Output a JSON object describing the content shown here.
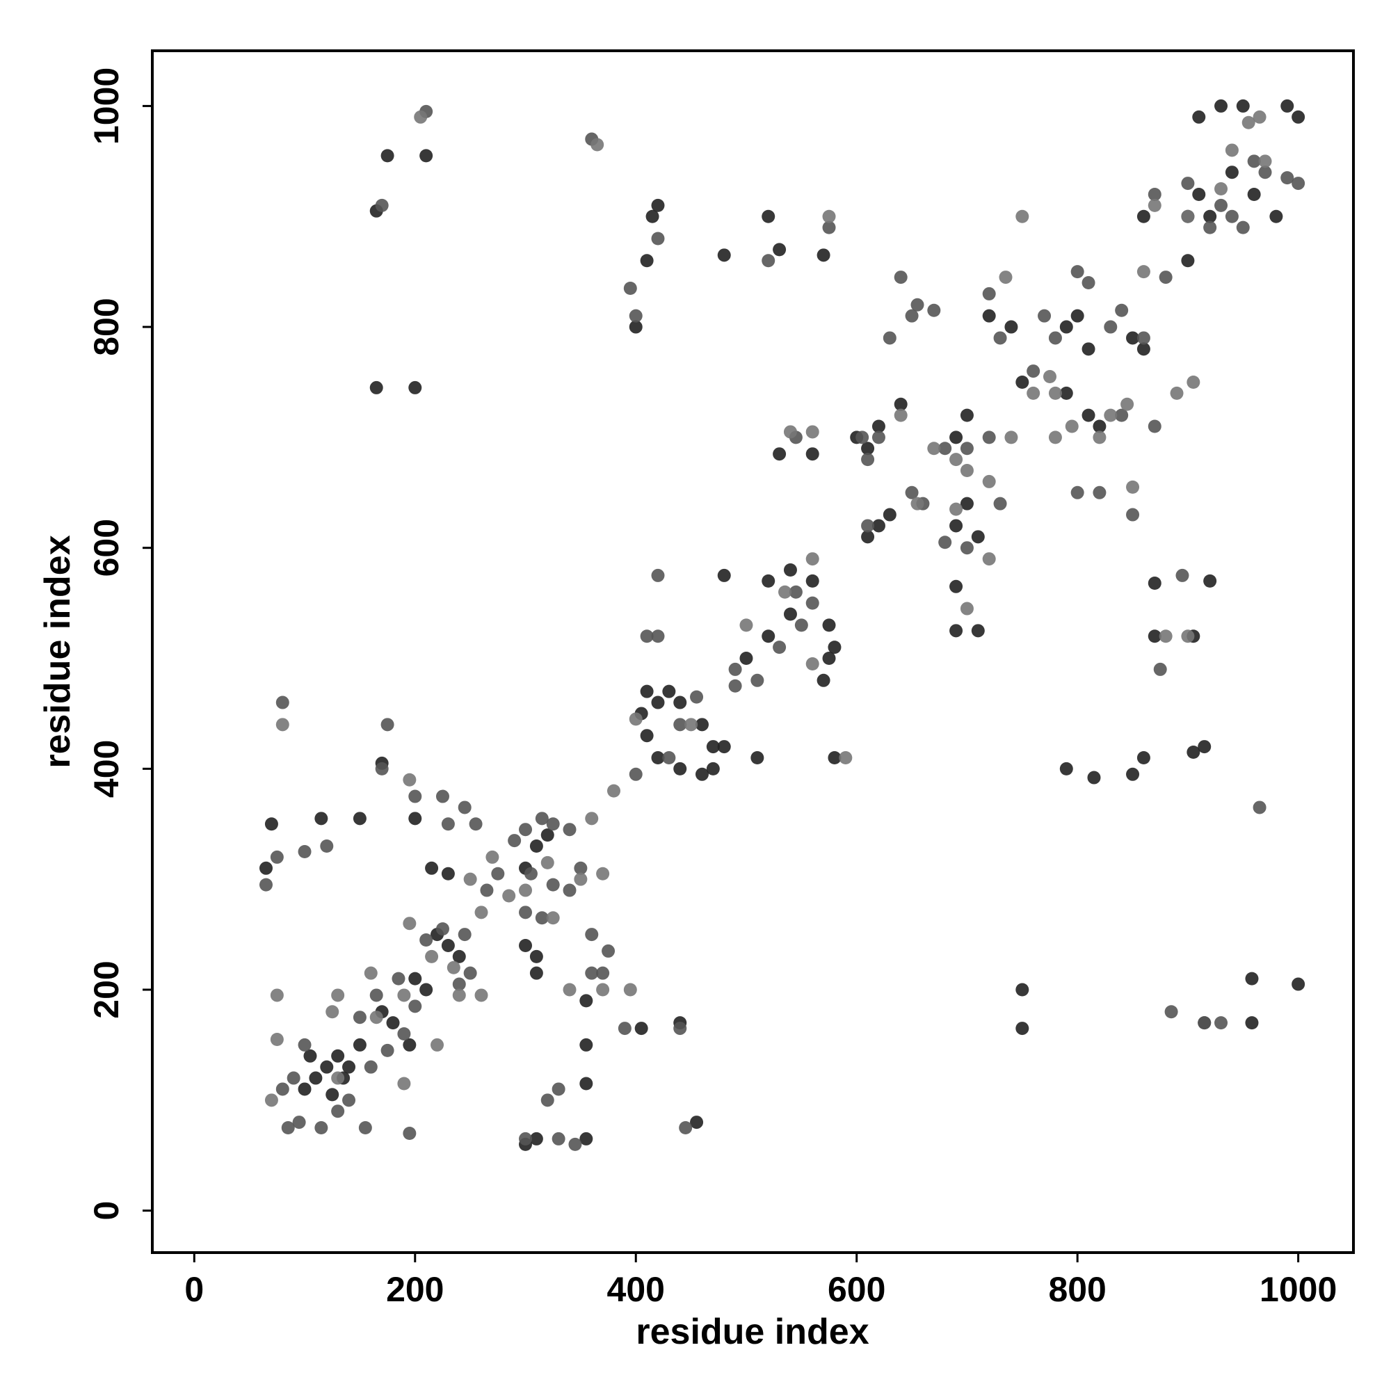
{
  "chart_data": {
    "type": "scatter",
    "x_label": "residue index",
    "y_label": "residue index",
    "xlim": [
      -38,
      1050
    ],
    "ylim": [
      -38,
      1050
    ],
    "xticks": [
      0,
      200,
      400,
      600,
      800,
      1000
    ],
    "yticks": [
      0,
      200,
      400,
      600,
      800,
      1000
    ],
    "grid": false,
    "series": [
      {
        "color": "#222222",
        "x": [
          110,
          120,
          130,
          140,
          135,
          125,
          100,
          105,
          150,
          170,
          180,
          200,
          210,
          195,
          230,
          240,
          220,
          300,
          310,
          320,
          310,
          300,
          310,
          355,
          355,
          355,
          355,
          405,
          440,
          455,
          420,
          430,
          440,
          460,
          470,
          480,
          470,
          460,
          440,
          420,
          410,
          405,
          410,
          480,
          500,
          520,
          540,
          560,
          520,
          540,
          575,
          575,
          580,
          510,
          570,
          610,
          620,
          630,
          600,
          610,
          620,
          640,
          690,
          700,
          710,
          700,
          690,
          720,
          740,
          750,
          790,
          800,
          810,
          790,
          810,
          820,
          850,
          860,
          900,
          910,
          920,
          940,
          960,
          990,
          1000,
          980,
          910,
          930,
          950,
          900,
          860,
          790,
          815,
          850,
          860,
          905,
          915,
          870,
          905,
          870,
          920,
          958,
          958,
          1000,
          915,
          750,
          750,
          690,
          690,
          710,
          580,
          520,
          530,
          570,
          400,
          410,
          415,
          420,
          200,
          170,
          165,
          200,
          210,
          175,
          165,
          65,
          70,
          115,
          150,
          230,
          215,
          300,
          310,
          480,
          530,
          560
        ],
        "values": [
          120,
          130,
          140,
          130,
          120,
          105,
          110,
          140,
          150,
          180,
          170,
          210,
          200,
          150,
          240,
          230,
          250,
          310,
          330,
          340,
          230,
          60,
          65,
          65,
          115,
          150,
          190,
          165,
          170,
          80,
          460,
          470,
          460,
          440,
          420,
          420,
          400,
          395,
          400,
          410,
          430,
          450,
          470,
          575,
          500,
          520,
          540,
          570,
          570,
          580,
          500,
          530,
          510,
          410,
          480,
          610,
          620,
          630,
          700,
          690,
          710,
          730,
          700,
          720,
          610,
          640,
          620,
          810,
          800,
          750,
          800,
          810,
          780,
          740,
          720,
          710,
          790,
          780,
          900,
          920,
          900,
          940,
          920,
          1000,
          990,
          900,
          990,
          1000,
          1000,
          860,
          900,
          400,
          392,
          395,
          410,
          415,
          420,
          520,
          520,
          568,
          570,
          210,
          170,
          205,
          170,
          200,
          165,
          565,
          525,
          525,
          410,
          900,
          870,
          865,
          800,
          860,
          900,
          910,
          355,
          405,
          745,
          745,
          955,
          955,
          905,
          310,
          350,
          355,
          355,
          305,
          310,
          240,
          215,
          865,
          685,
          685
        ]
      },
      {
        "color": "#555555",
        "x": [
          80,
          90,
          100,
          95,
          85,
          115,
          130,
          140,
          160,
          150,
          165,
          185,
          175,
          190,
          200,
          210,
          225,
          240,
          250,
          245,
          265,
          275,
          290,
          300,
          315,
          325,
          340,
          350,
          340,
          325,
          300,
          315,
          305,
          360,
          360,
          375,
          370,
          330,
          320,
          400,
          390,
          445,
          360,
          440,
          430,
          455,
          420,
          410,
          420,
          490,
          510,
          530,
          550,
          560,
          545,
          490,
          605,
          620,
          650,
          660,
          680,
          700,
          720,
          730,
          700,
          680,
          720,
          730,
          760,
          770,
          780,
          800,
          810,
          830,
          840,
          860,
          800,
          820,
          850,
          870,
          900,
          920,
          940,
          960,
          970,
          990,
          1000,
          950,
          930,
          840,
          640,
          630,
          650,
          670,
          895,
          875,
          915,
          930,
          965,
          870,
          880,
          885,
          655,
          545,
          575,
          520,
          400,
          395,
          420,
          65,
          75,
          100,
          120,
          175,
          170,
          80,
          195,
          210,
          200,
          225,
          245,
          255,
          230,
          170,
          155,
          300,
          330,
          345,
          440,
          610,
          610
        ],
        "values": [
          110,
          120,
          150,
          80,
          75,
          75,
          90,
          100,
          130,
          175,
          195,
          210,
          145,
          160,
          185,
          245,
          255,
          205,
          215,
          250,
          290,
          305,
          335,
          345,
          355,
          350,
          345,
          310,
          290,
          295,
          270,
          265,
          305,
          215,
          250,
          235,
          215,
          110,
          100,
          395,
          165,
          75,
          970,
          440,
          410,
          465,
          520,
          520,
          575,
          490,
          480,
          510,
          530,
          550,
          560,
          475,
          700,
          700,
          650,
          640,
          690,
          690,
          700,
          640,
          600,
          605,
          830,
          790,
          760,
          810,
          790,
          850,
          840,
          800,
          720,
          790,
          650,
          650,
          630,
          710,
          930,
          890,
          900,
          950,
          940,
          935,
          930,
          890,
          910,
          815,
          845,
          790,
          810,
          815,
          575,
          490,
          170,
          170,
          365,
          920,
          845,
          180,
          820,
          700,
          890,
          860,
          810,
          835,
          880,
          295,
          320,
          325,
          330,
          440,
          400,
          460,
          70,
          995,
          375,
          375,
          365,
          350,
          350,
          910,
          75,
          65,
          65,
          60,
          165,
          680,
          620
        ]
      },
      {
        "color": "#777777",
        "x": [
          75,
          70,
          130,
          160,
          190,
          195,
          260,
          220,
          270,
          285,
          260,
          250,
          340,
          370,
          380,
          395,
          370,
          360,
          195,
          400,
          450,
          560,
          590,
          575,
          540,
          560,
          640,
          670,
          690,
          700,
          700,
          720,
          740,
          760,
          780,
          780,
          820,
          830,
          845,
          860,
          870,
          905,
          940,
          970,
          750,
          735,
          775,
          795,
          850,
          900,
          880,
          890,
          900,
          955,
          965,
          930,
          80,
          75,
          130,
          125,
          165,
          190,
          215,
          235,
          240,
          300,
          320,
          350,
          325,
          205,
          365,
          690,
          720,
          655,
          500,
          535,
          560
        ],
        "values": [
          195,
          100,
          195,
          215,
          115,
          260,
          195,
          150,
          320,
          285,
          270,
          300,
          200,
          200,
          380,
          200,
          305,
          355,
          390,
          445,
          440,
          495,
          410,
          900,
          705,
          705,
          720,
          690,
          680,
          670,
          545,
          660,
          700,
          740,
          740,
          700,
          700,
          720,
          730,
          850,
          910,
          750,
          960,
          950,
          900,
          845,
          755,
          710,
          655,
          520,
          520,
          740,
          900,
          985,
          990,
          925,
          440,
          155,
          120,
          180,
          175,
          195,
          230,
          220,
          195,
          290,
          315,
          300,
          265,
          990,
          965,
          635,
          590,
          640,
          530,
          560,
          590
        ]
      }
    ]
  }
}
